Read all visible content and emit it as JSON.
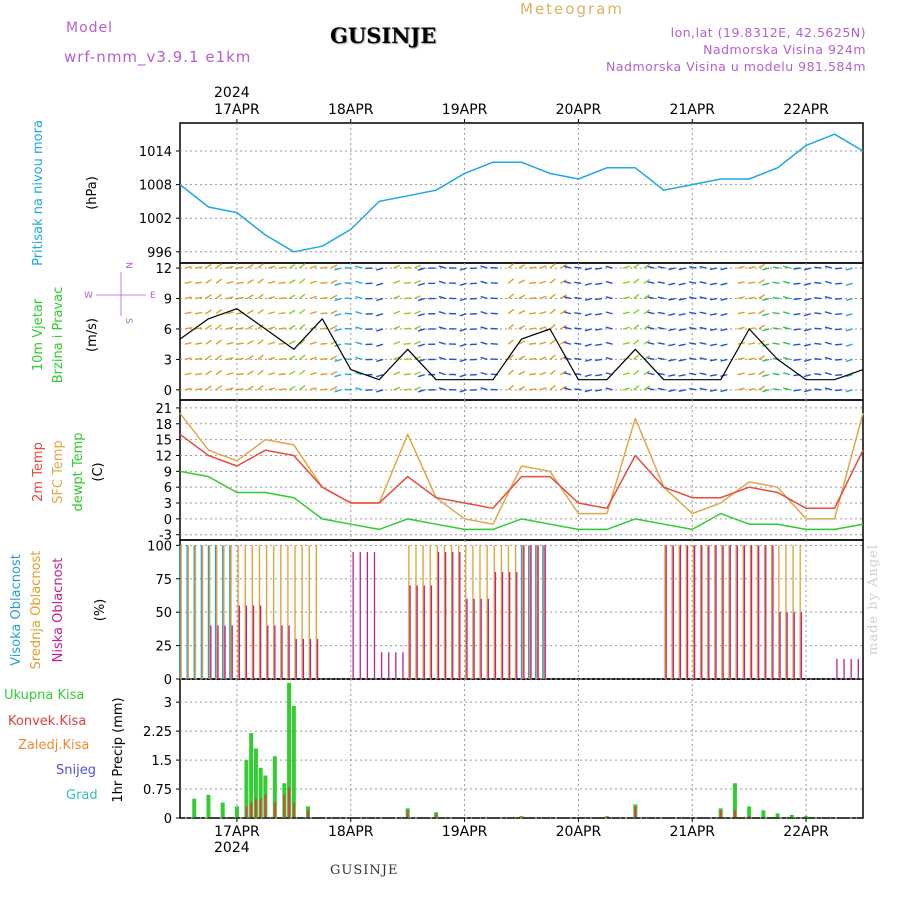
{
  "header": {
    "model_label": "Model",
    "model_run": "wrf-nmm_v3.9.1 e1km",
    "station_title": "GUSINJE",
    "meteogram_label": "Meteogram",
    "lonlat": "lon,lat (19.8312E, 42.5625N)",
    "elevation": "Nadmorska Visina 924m",
    "model_elevation": "Nadmorska Visina u modelu 981.584m"
  },
  "time_axis": {
    "year": "2024",
    "day_labels": [
      "17APR",
      "18APR",
      "19APR",
      "20APR",
      "21APR",
      "22APR"
    ],
    "start": "2024-04-16 12:00",
    "end": "2024-04-22 12:00"
  },
  "footer": {
    "station": "GUSINJE",
    "credit": "made by Angel"
  },
  "panels": {
    "pressure": {
      "label": "Pritisak na nivou mora",
      "unit": "(hPa)"
    },
    "wind": {
      "label_line1": "10m Vjetar",
      "label_line2": "Brzina i Pravac",
      "unit": "(m/s)",
      "compass_w": "W",
      "compass_e": "E",
      "compass_s": "S",
      "compass_n": "N"
    },
    "temp": {
      "label_t2": "2m Temp",
      "label_sfc": "SFC Temp",
      "label_dew": "dewpt Temp",
      "unit": "(C)"
    },
    "cloud": {
      "label_high": "Visoka Oblacnost",
      "label_mid": "Srednja Oblacnost",
      "label_low": "Niska Oblacnost",
      "unit": "(%)"
    },
    "precip": {
      "label_total": "Ukupna Kisa",
      "label_conv": "Konvek.Kisa",
      "label_frz": "Zaledj.Kisa",
      "label_snow": "Snijeg",
      "label_grad": "Grad",
      "unit": "1hr Precip (mm)"
    }
  },
  "colors": {
    "pressure": "#1ea7e4",
    "wind_speed": "#000000",
    "t2": "#e84b3c",
    "sfc": "#e0a84a",
    "dew": "#2ecc2e",
    "cloud_high": "#2a9fd6",
    "cloud_mid": "#e0a030",
    "cloud_low": "#c0208a",
    "precip_total": "#33cc33",
    "precip_conv": "#e04040",
    "precip_frz": "#f08a30",
    "precip_snow": "#5050e0",
    "precip_grad": "#30c0c0"
  },
  "chart_data": [
    {
      "type": "line",
      "title": "Pritisak na nivou mora",
      "ylabel": "(hPa)",
      "ylim": [
        994,
        1019
      ],
      "yticks": [
        996,
        1002,
        1008,
        1014
      ],
      "x_unit": "hours from 2024-04-16 12:00",
      "x": [
        0,
        6,
        12,
        18,
        24,
        30,
        36,
        42,
        48,
        54,
        60,
        66,
        72,
        78,
        84,
        90,
        96,
        102,
        108,
        114,
        120,
        126,
        132,
        138,
        144
      ],
      "series": [
        {
          "name": "Pritisak na nivou mora",
          "values": [
            1008,
            1004,
            1003,
            999,
            996,
            997,
            1000,
            1005,
            1006,
            1007,
            1010,
            1012,
            1012,
            1010,
            1009,
            1011,
            1011,
            1007,
            1008,
            1009,
            1009,
            1011,
            1015,
            1017,
            1014
          ]
        }
      ]
    },
    {
      "type": "line",
      "title": "10m Vjetar Brzina i Pravac",
      "ylabel": "(m/s)",
      "ylim": [
        -1,
        12.5
      ],
      "yticks": [
        0,
        3,
        6,
        9,
        12
      ],
      "x_unit": "hours from 2024-04-16 12:00",
      "x": [
        0,
        6,
        12,
        18,
        24,
        30,
        36,
        42,
        48,
        54,
        60,
        66,
        72,
        78,
        84,
        90,
        96,
        102,
        108,
        114,
        120,
        126,
        132,
        138,
        144
      ],
      "series": [
        {
          "name": "10m Vjetar",
          "values": [
            5,
            7,
            8,
            6,
            4,
            7,
            2,
            1,
            4,
            1,
            1,
            1,
            5,
            6,
            1,
            1,
            4,
            1,
            1,
            1,
            6,
            3,
            1,
            1,
            2
          ]
        }
      ]
    },
    {
      "type": "line",
      "title": "2m Temp / SFC Temp / dewpt Temp",
      "ylabel": "(C)",
      "ylim": [
        -4,
        22.5
      ],
      "yticks": [
        -3,
        0,
        3,
        6,
        9,
        12,
        15,
        18,
        21
      ],
      "x_unit": "hours from 2024-04-16 12:00",
      "x": [
        0,
        6,
        12,
        18,
        24,
        30,
        36,
        42,
        48,
        54,
        60,
        66,
        72,
        78,
        84,
        90,
        96,
        102,
        108,
        114,
        120,
        126,
        132,
        138,
        144
      ],
      "series": [
        {
          "name": "2m Temp",
          "values": [
            16,
            12,
            10,
            13,
            12,
            6,
            3,
            3,
            8,
            4,
            3,
            2,
            8,
            8,
            3,
            2,
            12,
            6,
            4,
            4,
            6,
            5,
            2,
            2,
            13
          ]
        },
        {
          "name": "SFC Temp",
          "values": [
            20,
            13,
            11,
            15,
            14,
            6,
            3,
            3,
            16,
            4,
            0,
            -1,
            10,
            9,
            1,
            1,
            19,
            6,
            1,
            3,
            7,
            6,
            0,
            0,
            20
          ]
        },
        {
          "name": "dewpt Temp",
          "values": [
            9,
            8,
            5,
            5,
            4,
            0,
            -1,
            -2,
            0,
            -1,
            -2,
            -2,
            0,
            -1,
            -2,
            -2,
            0,
            -1,
            -2,
            1,
            -1,
            -1,
            -2,
            -2,
            -1
          ]
        }
      ]
    },
    {
      "type": "bar",
      "title": "Visoka / Srednja / Niska Oblacnost",
      "ylabel": "(%)",
      "ylim": [
        0,
        104
      ],
      "yticks": [
        0,
        25,
        50,
        75,
        100
      ],
      "x_unit": "hours from 2024-04-16 12:00",
      "x": [
        0,
        6,
        12,
        18,
        24,
        30,
        36,
        42,
        48,
        54,
        60,
        66,
        72,
        78,
        84,
        90,
        96,
        102,
        108,
        114,
        120,
        126,
        132,
        138,
        144
      ],
      "series": [
        {
          "name": "Visoka Oblacnost",
          "values": [
            100,
            100,
            0,
            0,
            0,
            0,
            0,
            0,
            0,
            0,
            0,
            0,
            100,
            0,
            0,
            0,
            0,
            0,
            0,
            0,
            0,
            0,
            0,
            0,
            0
          ]
        },
        {
          "name": "Srednja Oblacnost",
          "values": [
            100,
            100,
            100,
            100,
            100,
            0,
            0,
            0,
            100,
            100,
            100,
            100,
            100,
            0,
            0,
            0,
            0,
            100,
            100,
            100,
            100,
            100,
            0,
            0,
            0
          ]
        },
        {
          "name": "Niska Oblacnost",
          "values": [
            0,
            40,
            55,
            40,
            30,
            0,
            95,
            20,
            70,
            95,
            60,
            80,
            100,
            0,
            0,
            0,
            0,
            100,
            100,
            100,
            100,
            50,
            0,
            15,
            10
          ]
        }
      ]
    },
    {
      "type": "bar",
      "title": "1hr Precip",
      "ylabel": "1hr Precip (mm)",
      "ylim": [
        0,
        3.6
      ],
      "yticks": [
        0,
        0.75,
        1.5,
        2.25,
        3
      ],
      "x_unit": "hours from 2024-04-16 12:00",
      "x": [
        3,
        6,
        9,
        12,
        14,
        15,
        16,
        17,
        18,
        20,
        22,
        23,
        24,
        27,
        48,
        54,
        72,
        90,
        96,
        114,
        117,
        120,
        123,
        126,
        129,
        132
      ],
      "series": [
        {
          "name": "Ukupna Kisa",
          "values": [
            0.5,
            0.6,
            0.4,
            0.3,
            1.5,
            2.2,
            1.8,
            1.3,
            1.1,
            1.6,
            0.9,
            3.5,
            2.9,
            0.3,
            0.25,
            0.15,
            0.05,
            0.05,
            0.35,
            0.25,
            0.9,
            0.3,
            0.2,
            0.12,
            0.08,
            0.05
          ]
        },
        {
          "name": "Konvek.Kisa",
          "values": [
            0,
            0,
            0,
            0,
            0.3,
            0.4,
            0.5,
            0.5,
            0.6,
            0.4,
            0.6,
            0.8,
            0.4,
            0.2,
            0.2,
            0.1,
            0.03,
            0.03,
            0.3,
            0.2,
            0.2,
            0.05,
            0,
            0,
            0,
            0
          ]
        },
        {
          "name": "Zaledj.Kisa",
          "values": [
            0,
            0,
            0,
            0,
            0,
            0,
            0,
            0,
            0,
            0,
            0,
            0,
            0,
            0,
            0,
            0,
            0,
            0,
            0,
            0,
            0,
            0,
            0,
            0,
            0,
            0
          ]
        },
        {
          "name": "Snijeg",
          "values": [
            0,
            0,
            0,
            0,
            0,
            0,
            0,
            0,
            0,
            0,
            0,
            0,
            0,
            0,
            0,
            0,
            0,
            0,
            0,
            0,
            0,
            0,
            0,
            0,
            0,
            0
          ]
        },
        {
          "name": "Grad",
          "values": [
            0,
            0,
            0,
            0,
            0,
            0,
            0,
            0,
            0,
            0,
            0,
            0,
            0,
            0,
            0,
            0,
            0,
            0,
            0,
            0,
            0,
            0,
            0,
            0,
            0,
            0
          ]
        }
      ]
    }
  ]
}
